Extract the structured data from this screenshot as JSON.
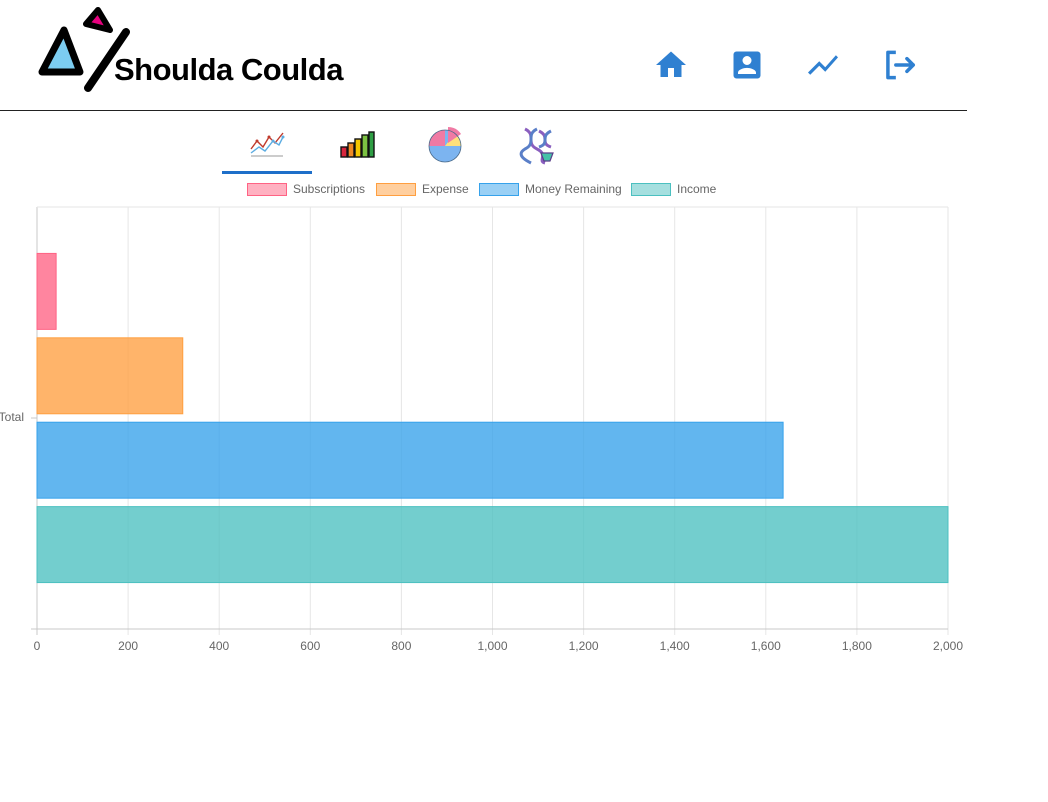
{
  "app": {
    "brand": "Shoulda Coulda"
  },
  "nav": {
    "items": [
      {
        "name": "nav-home",
        "icon": "home-icon"
      },
      {
        "name": "nav-profile",
        "icon": "account-box-icon"
      },
      {
        "name": "nav-trends",
        "icon": "trending-line-icon"
      },
      {
        "name": "nav-logout",
        "icon": "logout-icon"
      }
    ],
    "color": "#2f80d1"
  },
  "tabs": [
    {
      "name": "tab-line-chart",
      "icon": "line-chart-icon",
      "active": true
    },
    {
      "name": "tab-bar-chart",
      "icon": "bar-chart-icon",
      "active": false
    },
    {
      "name": "tab-pie-chart",
      "icon": "pie-chart-icon",
      "active": false
    },
    {
      "name": "tab-dna-chart",
      "icon": "dna-icon",
      "active": false
    }
  ],
  "chart_data": {
    "type": "bar",
    "orientation": "horizontal",
    "categories": [
      "Total"
    ],
    "series": [
      {
        "name": "Subscriptions",
        "values": [
          42
        ],
        "color": "#ff6384"
      },
      {
        "name": "Expense",
        "values": [
          320
        ],
        "color": "#ff9f40"
      },
      {
        "name": "Money Remaining",
        "values": [
          1638
        ],
        "color": "#36a2eb"
      },
      {
        "name": "Income",
        "values": [
          2000
        ],
        "color": "#4bc0c0"
      }
    ],
    "xlim": [
      0,
      2000
    ],
    "x_ticks": [
      "0",
      "200",
      "400",
      "600",
      "800",
      "1,000",
      "1,200",
      "1,400",
      "1,600",
      "1,800",
      "2,000"
    ],
    "grid": true,
    "legend_position": "top"
  }
}
